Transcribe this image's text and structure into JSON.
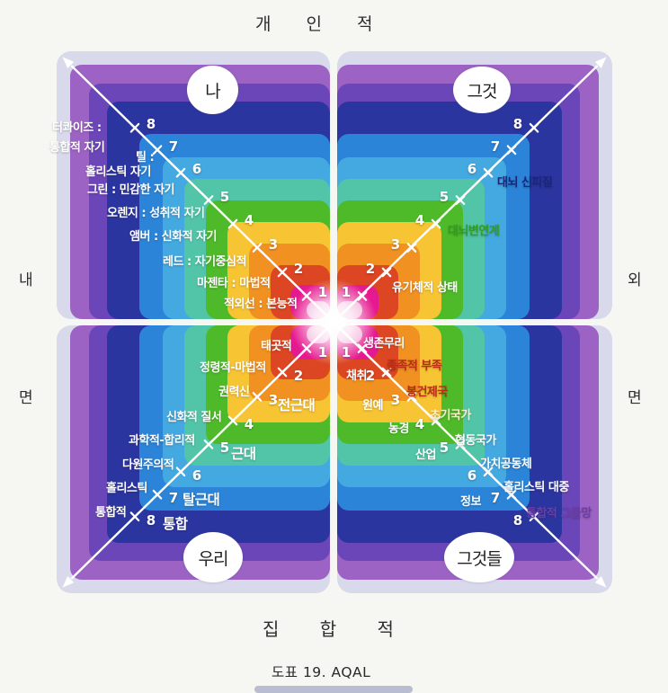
{
  "page": {
    "title_top": "개 인 적",
    "title_bottom": "집 합 적",
    "caption": "도표 19. AQAL",
    "side_left_top": "내",
    "side_left_bottom": "면",
    "side_right_top": "외",
    "side_right_bottom": "면"
  },
  "levels": [
    "1",
    "2",
    "3",
    "4",
    "5",
    "6",
    "7",
    "8"
  ],
  "quadrants": {
    "ul": {
      "circle": "나",
      "labels": [
        "터콰이즈 :",
        "통합적 자기",
        "틸 :",
        "홀리스틱 자기",
        "그린 : 민감한 자기",
        "오렌지 : 성취적 자기",
        "앰버 : 신화적 자기",
        "레드 : 자기중심적",
        "마젠타 : 마법적",
        "적외선 : 본능적"
      ]
    },
    "ur": {
      "circle": "그것",
      "labels": [
        "대뇌 신피질",
        "대뇌변연계",
        "유기체적 상태"
      ]
    },
    "ll": {
      "circle": "우리",
      "labels": [
        "태곳적",
        "정령적-마법적",
        "권력신",
        "전근대",
        "신화적 질서",
        "과학적-합리적",
        "근대",
        "다원주의적",
        "홀리스틱",
        "탈근대",
        "통합적",
        "통합"
      ]
    },
    "lr": {
      "circle": "그것들",
      "labels": [
        "생존무리",
        "종족적 부족",
        "채취",
        "봉건제국",
        "원예",
        "초기국가",
        "농경",
        "협동국가",
        "산업",
        "가치공동체",
        "홀리스틱 대중",
        "정보",
        "통합적 그물망"
      ]
    }
  },
  "colors": {
    "lavender": "#d8d9eb",
    "purple": "#9c63c4",
    "indigo": "#6b46b8",
    "navy": "#2b35a0",
    "blue": "#2b84d8",
    "sky": "#44a9e0",
    "teal": "#52c5a8",
    "green": "#4eba2a",
    "yellow": "#f7c434",
    "orange": "#f09121",
    "red": "#dc4623",
    "magenta": "#e61a90",
    "pink": "#f2a9d6",
    "white": "#ffffff",
    "navyText": "#16277e",
    "greenText": "#2f9e1f",
    "redText": "#bb2c12",
    "creamText": "#fbf0c6",
    "purpleText": "#6b3da8",
    "arrow": "#ffffff"
  }
}
